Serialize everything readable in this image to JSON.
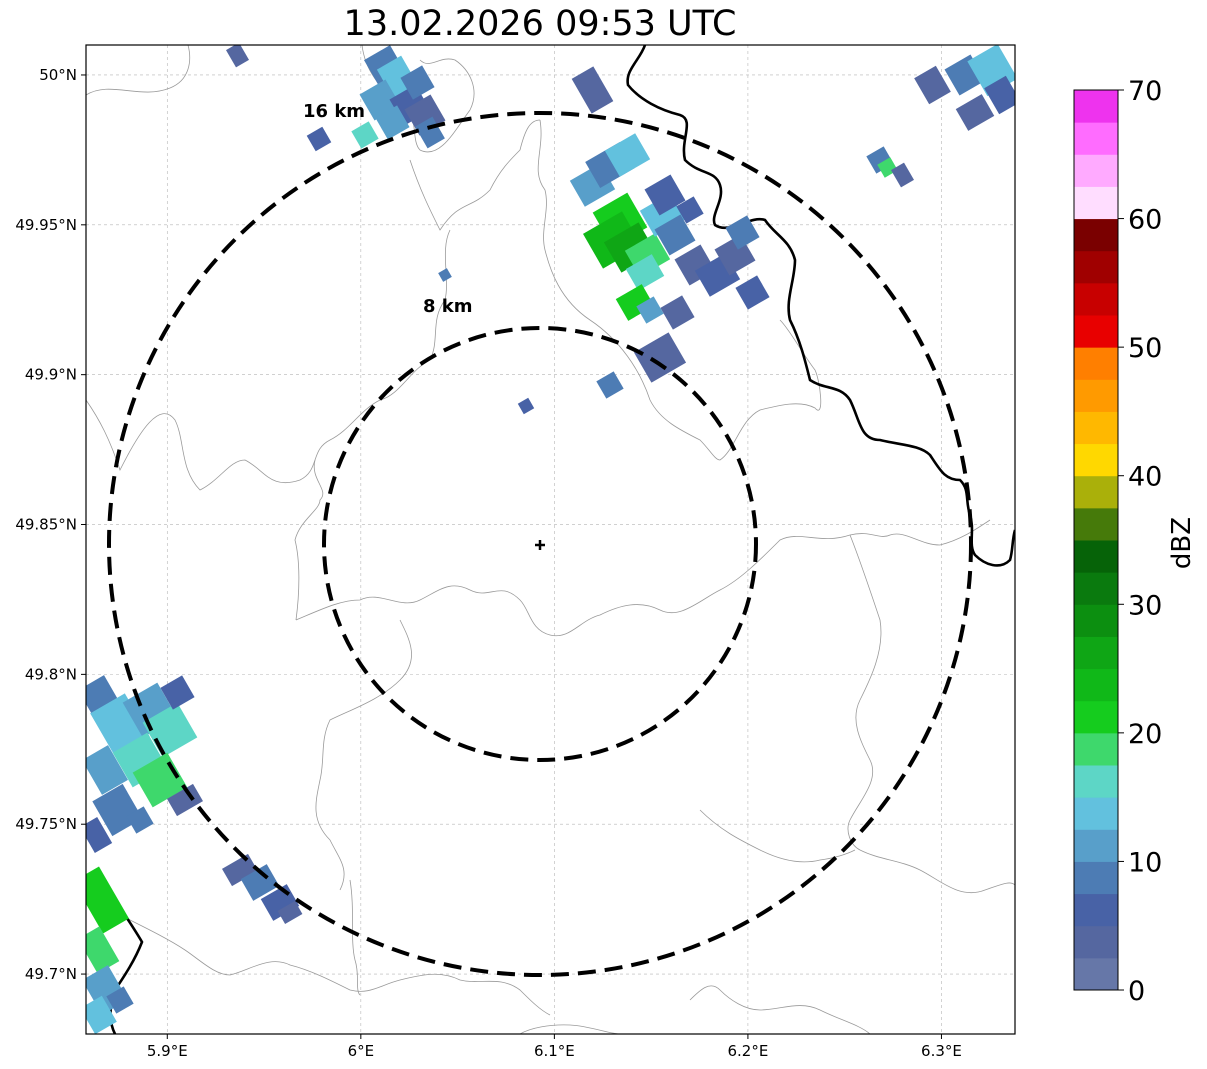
{
  "title": "13.02.2026 09:53 UTC",
  "map": {
    "lon_range": [
      5.858,
      6.338
    ],
    "lat_range": [
      49.68,
      50.01
    ],
    "center": {
      "lon": 6.095,
      "lat": 49.843
    },
    "ring_labels": [
      "16 km",
      "8 km"
    ],
    "ring_radii_km": [
      16,
      8
    ],
    "grid": true,
    "x_ticks": [
      "5.9°E",
      "6°E",
      "6.1°E",
      "6.2°E",
      "6.3°E"
    ],
    "x_tick_values": [
      5.9,
      6.0,
      6.1,
      6.2,
      6.3
    ],
    "y_ticks": [
      "50°N",
      "49.95°N",
      "49.9°N",
      "49.85°N",
      "49.8°N",
      "49.75°N",
      "49.7°N"
    ],
    "y_tick_values": [
      50.0,
      49.95,
      49.9,
      49.85,
      49.8,
      49.75,
      49.7
    ]
  },
  "colorbar": {
    "label": "dBZ",
    "ticks": [
      "0",
      "10",
      "20",
      "30",
      "40",
      "50",
      "60",
      "70"
    ],
    "range": [
      0,
      70
    ],
    "colors": [
      "#6677a8",
      "#5567a0",
      "#4862a6",
      "#4d7cb4",
      "#589fca",
      "#62c1de",
      "#5dd6c6",
      "#3ed86c",
      "#15cc1e",
      "#10b818",
      "#0fa615",
      "#0c8f10",
      "#0a7a0e",
      "#066308",
      "#467a0a",
      "#aab00a",
      "#ffd800",
      "#ffb800",
      "#ff9a00",
      "#ff7f00",
      "#e80000",
      "#c80000",
      "#a00000",
      "#7a0000",
      "#ffddff",
      "#ffaaff",
      "#ff6cff",
      "#ee33ee"
    ]
  }
}
